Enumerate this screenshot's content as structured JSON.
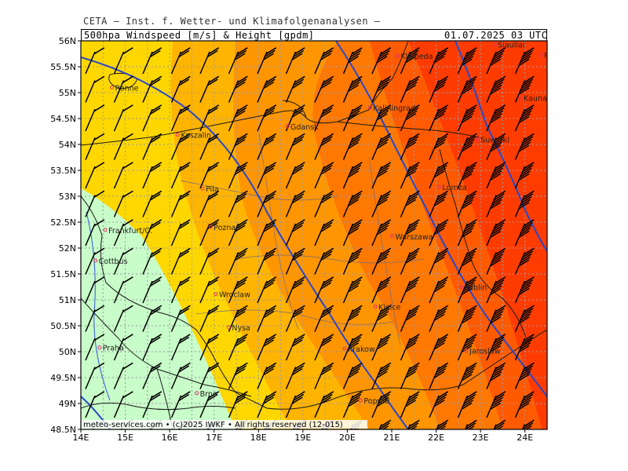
{
  "header": {
    "institution": "CETA – Inst. f. Wetter- und Klimafolgenanalysen –",
    "parameter": "500hpa Windspeed [m/s] & Height [gpdm]",
    "datetime": "01.07.2025 03 UTC"
  },
  "map": {
    "lat_ticks": [
      "56N",
      "55.5N",
      "55N",
      "54.5N",
      "54N",
      "53.5N",
      "53N",
      "52.5N",
      "52N",
      "51.5N",
      "51N",
      "50.5N",
      "50N",
      "49.5N",
      "49N",
      "48.5N"
    ],
    "lon_ticks": [
      "14E",
      "15E",
      "16E",
      "17E",
      "18E",
      "19E",
      "20E",
      "21E",
      "22E",
      "23E",
      "24E"
    ],
    "lon_range": [
      14,
      24.5
    ],
    "lat_range": [
      48.5,
      56
    ],
    "colors": {
      "band1": "#c8fcc8",
      "band2": "#fff07a",
      "band3": "#ffd700",
      "band4": "#ffb400",
      "band5": "#ff9600",
      "band6": "#ff7800",
      "band7": "#ff5a00",
      "band8": "#ff3c00",
      "contour": "#2a48c8",
      "barb": "#000000",
      "grid": "#9a9aaa",
      "city_dot": "#e0306a"
    },
    "cities": [
      {
        "name": "Ronne",
        "lon": 14.7,
        "lat": 55.1
      },
      {
        "name": "Klaipeda",
        "lon": 21.13,
        "lat": 55.71
      },
      {
        "name": "Siauliai",
        "lon": 23.32,
        "lat": 55.93
      },
      {
        "name": "Panevezys",
        "lon": 24.36,
        "lat": 55.73
      },
      {
        "name": "Kaunas",
        "lon": 23.9,
        "lat": 54.9
      },
      {
        "name": "Kaliningrad",
        "lon": 20.51,
        "lat": 54.71
      },
      {
        "name": "Gdansk",
        "lon": 18.65,
        "lat": 54.35
      },
      {
        "name": "Koszalin",
        "lon": 16.18,
        "lat": 54.19
      },
      {
        "name": "Suwalki",
        "lon": 22.93,
        "lat": 54.1
      },
      {
        "name": "Pila",
        "lon": 16.74,
        "lat": 53.15
      },
      {
        "name": "Lomza",
        "lon": 22.07,
        "lat": 53.18
      },
      {
        "name": "Poznan",
        "lon": 16.92,
        "lat": 52.41
      },
      {
        "name": "Frankfurt/O.",
        "lon": 14.55,
        "lat": 52.35
      },
      {
        "name": "Warszawa",
        "lon": 21.01,
        "lat": 52.23
      },
      {
        "name": "Cottbus",
        "lon": 14.33,
        "lat": 51.76
      },
      {
        "name": "Lublin",
        "lon": 22.57,
        "lat": 51.25
      },
      {
        "name": "Wroclaw",
        "lon": 17.04,
        "lat": 51.11
      },
      {
        "name": "Kielce",
        "lon": 20.63,
        "lat": 50.87
      },
      {
        "name": "Nysa",
        "lon": 17.33,
        "lat": 50.47
      },
      {
        "name": "Krakow",
        "lon": 19.94,
        "lat": 50.06
      },
      {
        "name": "Praha",
        "lon": 14.42,
        "lat": 50.08
      },
      {
        "name": "Jaroslaw",
        "lon": 22.68,
        "lat": 50.02
      },
      {
        "name": "Brno",
        "lon": 16.61,
        "lat": 49.2
      },
      {
        "name": "Poprad",
        "lon": 20.3,
        "lat": 49.06
      }
    ],
    "credit": "meteo-services.com • (c)2025 IWKF • All rights reserved (12-015)"
  }
}
